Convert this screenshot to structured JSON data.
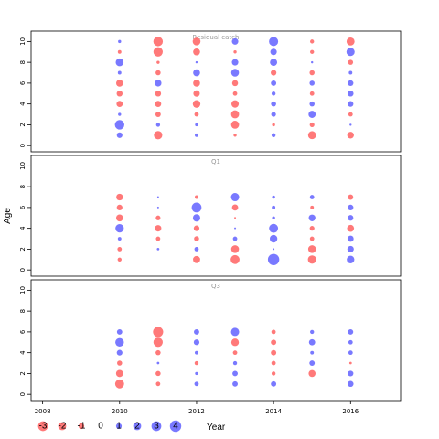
{
  "chart_data": {
    "type": "scatter",
    "ylabel": "Age",
    "xlabel": "Year",
    "xlim": [
      2007.7,
      2017.3
    ],
    "ylim": [
      -0.6,
      11.0
    ],
    "x_ticks": [
      2008,
      2010,
      2012,
      2014,
      2016
    ],
    "y_ticks": [
      0,
      2,
      4,
      6,
      8,
      10
    ],
    "grid": false,
    "colors": {
      "positive": "#6666ff",
      "negative": "#ff6666",
      "frame": "#000000"
    },
    "legend": {
      "position": "bottom-left",
      "values": [
        -3,
        -2,
        -1,
        0,
        1,
        2,
        3,
        4
      ],
      "labels": [
        "-3",
        "-2",
        "-1",
        "0",
        "1",
        "2",
        "3",
        "4"
      ]
    },
    "panels": [
      {
        "title": "Residual catch",
        "points": [
          [
            2010,
            10,
            0.3
          ],
          [
            2010,
            9,
            -0.4
          ],
          [
            2010,
            8,
            1.9
          ],
          [
            2010,
            7,
            0.4
          ],
          [
            2010,
            6,
            -1.5
          ],
          [
            2010,
            5,
            -1.1
          ],
          [
            2010,
            4,
            -1.2
          ],
          [
            2010,
            3,
            0.3
          ],
          [
            2010,
            2,
            2.8
          ],
          [
            2010,
            1,
            1.0
          ],
          [
            2011,
            10,
            -2.8
          ],
          [
            2011,
            9,
            -2.7
          ],
          [
            2011,
            8,
            -0.3
          ],
          [
            2011,
            7,
            -0.8
          ],
          [
            2011,
            6,
            1.4
          ],
          [
            2011,
            5,
            -1.1
          ],
          [
            2011,
            4,
            -1.2
          ],
          [
            2011,
            3,
            -0.9
          ],
          [
            2011,
            2,
            0.5
          ],
          [
            2011,
            1,
            -2.2
          ],
          [
            2012,
            10,
            -1.9
          ],
          [
            2012,
            9,
            -1.5
          ],
          [
            2012,
            8,
            0.15
          ],
          [
            2012,
            7,
            1.5
          ],
          [
            2012,
            6,
            -1.5
          ],
          [
            2012,
            5,
            -1.3
          ],
          [
            2012,
            4,
            -1.8
          ],
          [
            2012,
            3,
            -0.6
          ],
          [
            2012,
            2,
            0.3
          ],
          [
            2012,
            1,
            0.4
          ],
          [
            2013,
            10,
            1.3
          ],
          [
            2013,
            9,
            -0.3
          ],
          [
            2013,
            8,
            1.3
          ],
          [
            2013,
            7,
            1.9
          ],
          [
            2013,
            6,
            -1.1
          ],
          [
            2013,
            5,
            -0.6
          ],
          [
            2013,
            4,
            -1.7
          ],
          [
            2013,
            3,
            -2.0
          ],
          [
            2013,
            2,
            -2.0
          ],
          [
            2013,
            1,
            -0.3
          ],
          [
            2014,
            10,
            2.6
          ],
          [
            2014,
            9,
            1.3
          ],
          [
            2014,
            8,
            1.6
          ],
          [
            2014,
            7,
            -1.0
          ],
          [
            2014,
            6,
            0.9
          ],
          [
            2014,
            5,
            0.5
          ],
          [
            2014,
            4,
            0.8
          ],
          [
            2014,
            3,
            0.7
          ],
          [
            2014,
            2,
            -0.3
          ],
          [
            2014,
            1,
            0.5
          ],
          [
            2015,
            10,
            -0.5
          ],
          [
            2015,
            9,
            -0.5
          ],
          [
            2015,
            8,
            0.15
          ],
          [
            2015,
            7,
            -0.8
          ],
          [
            2015,
            6,
            0.8
          ],
          [
            2015,
            5,
            -0.6
          ],
          [
            2015,
            4,
            0.8
          ],
          [
            2015,
            3,
            1.6
          ],
          [
            2015,
            2,
            -0.7
          ],
          [
            2015,
            1,
            -2.0
          ],
          [
            2016,
            10,
            -2.0
          ],
          [
            2016,
            9,
            2.1
          ],
          [
            2016,
            8,
            -0.8
          ],
          [
            2016,
            7,
            0.4
          ],
          [
            2016,
            6,
            1.0
          ],
          [
            2016,
            5,
            1.1
          ],
          [
            2016,
            4,
            1.0
          ],
          [
            2016,
            3,
            -0.6
          ],
          [
            2016,
            2,
            0.15
          ],
          [
            2016,
            1,
            -1.4
          ]
        ]
      },
      {
        "title": "Q1",
        "points": [
          [
            2010,
            7,
            -1.4
          ],
          [
            2010,
            6,
            -1.0
          ],
          [
            2010,
            5,
            -1.5
          ],
          [
            2010,
            4,
            2.2
          ],
          [
            2010,
            3,
            0.4
          ],
          [
            2010,
            2,
            -0.6
          ],
          [
            2010,
            1,
            -0.5
          ],
          [
            2011,
            7,
            0.1
          ],
          [
            2011,
            6,
            0.1
          ],
          [
            2011,
            5,
            -0.7
          ],
          [
            2011,
            4,
            -1.3
          ],
          [
            2011,
            3,
            -0.6
          ],
          [
            2011,
            2,
            0.2
          ],
          [
            2012,
            7,
            -0.4
          ],
          [
            2012,
            6,
            3.0
          ],
          [
            2012,
            5,
            1.7
          ],
          [
            2012,
            4,
            -1.0
          ],
          [
            2012,
            3,
            -0.8
          ],
          [
            2012,
            2,
            0.6
          ],
          [
            2012,
            1,
            -1.6
          ],
          [
            2013,
            7,
            2.1
          ],
          [
            2013,
            6,
            -1.2
          ],
          [
            2013,
            5,
            -0.1
          ],
          [
            2013,
            4,
            0.1
          ],
          [
            2013,
            3,
            0.6
          ],
          [
            2013,
            2,
            -1.9
          ],
          [
            2013,
            1,
            -2.5
          ],
          [
            2014,
            7,
            0.3
          ],
          [
            2014,
            6,
            0.4
          ],
          [
            2014,
            5,
            0.3
          ],
          [
            2014,
            4,
            2.5
          ],
          [
            2014,
            3,
            1.8
          ],
          [
            2014,
            2,
            0.1
          ],
          [
            2014,
            1,
            4.0
          ],
          [
            2015,
            7,
            0.6
          ],
          [
            2015,
            6,
            -0.4
          ],
          [
            2015,
            5,
            1.4
          ],
          [
            2015,
            4,
            -0.7
          ],
          [
            2015,
            3,
            -0.6
          ],
          [
            2015,
            2,
            -1.9
          ],
          [
            2015,
            1,
            -2.2
          ],
          [
            2016,
            7,
            -0.9
          ],
          [
            2016,
            6,
            1.0
          ],
          [
            2016,
            5,
            1.0
          ],
          [
            2016,
            4,
            -1.5
          ],
          [
            2016,
            3,
            1.2
          ],
          [
            2016,
            2,
            1.3
          ],
          [
            2016,
            1,
            1.8
          ]
        ]
      },
      {
        "title": "Q3",
        "points": [
          [
            2010,
            6,
            0.9
          ],
          [
            2010,
            5,
            2.3
          ],
          [
            2010,
            4,
            1.0
          ],
          [
            2010,
            3,
            -0.8
          ],
          [
            2010,
            2,
            -1.6
          ],
          [
            2010,
            1,
            -2.5
          ],
          [
            2011,
            6,
            -3.2
          ],
          [
            2011,
            5,
            -2.7
          ],
          [
            2011,
            4,
            -0.8
          ],
          [
            2011,
            3,
            0.2
          ],
          [
            2011,
            2,
            -0.8
          ],
          [
            2011,
            1,
            -0.6
          ],
          [
            2012,
            6,
            0.9
          ],
          [
            2012,
            5,
            1.0
          ],
          [
            2012,
            4,
            0.4
          ],
          [
            2012,
            3,
            -0.5
          ],
          [
            2012,
            2,
            0.3
          ],
          [
            2012,
            1,
            0.6
          ],
          [
            2013,
            6,
            2.1
          ],
          [
            2013,
            5,
            -1.8
          ],
          [
            2013,
            4,
            -0.6
          ],
          [
            2013,
            3,
            0.5
          ],
          [
            2013,
            2,
            0.9
          ],
          [
            2013,
            1,
            0.9
          ],
          [
            2014,
            6,
            -0.6
          ],
          [
            2014,
            5,
            -0.9
          ],
          [
            2014,
            4,
            -0.9
          ],
          [
            2014,
            3,
            -0.6
          ],
          [
            2014,
            2,
            -0.5
          ],
          [
            2014,
            1,
            0.9
          ],
          [
            2015,
            6,
            0.5
          ],
          [
            2015,
            5,
            1.2
          ],
          [
            2015,
            4,
            0.4
          ],
          [
            2015,
            3,
            0.9
          ],
          [
            2015,
            2,
            -1.5
          ],
          [
            2016,
            6,
            0.9
          ],
          [
            2016,
            5,
            0.6
          ],
          [
            2016,
            4,
            0.6
          ],
          [
            2016,
            3,
            -0.2
          ],
          [
            2016,
            2,
            1.0
          ],
          [
            2016,
            1,
            1.1
          ]
        ]
      }
    ]
  }
}
